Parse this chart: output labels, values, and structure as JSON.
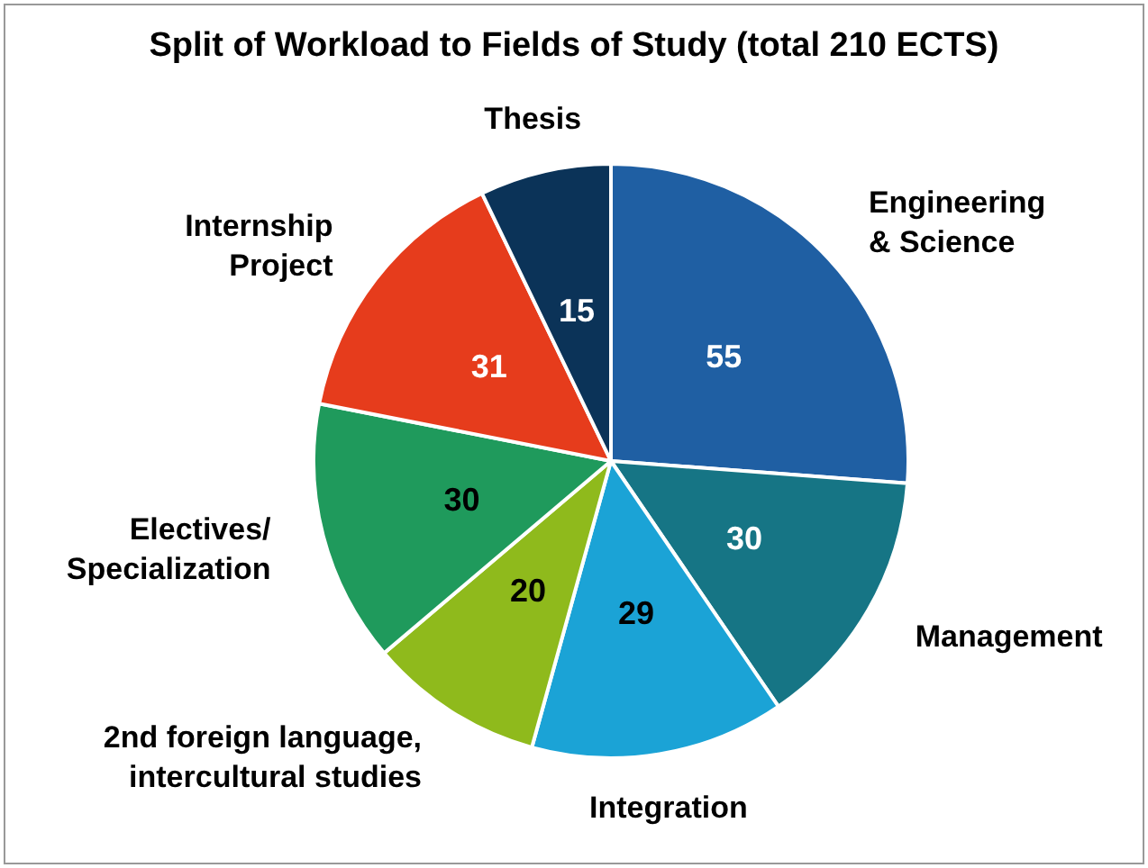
{
  "chart_data": {
    "type": "pie",
    "title": "Split of Workload to Fields of Study (total 210 ECTS)",
    "categories": [
      "Engineering\n& Science",
      "Management",
      "Integration",
      "2nd foreign language,\nintercultural studies",
      "Electives/\nSpecialization",
      "Internship\nProject",
      "Thesis"
    ],
    "values": [
      55,
      30,
      29,
      20,
      30,
      31,
      15
    ],
    "colors": [
      "#1f5fa3",
      "#167585",
      "#1ba3d6",
      "#8fba1c",
      "#1f9a5c",
      "#e63c1c",
      "#0b3358"
    ],
    "data_labels": true,
    "legend": false
  }
}
